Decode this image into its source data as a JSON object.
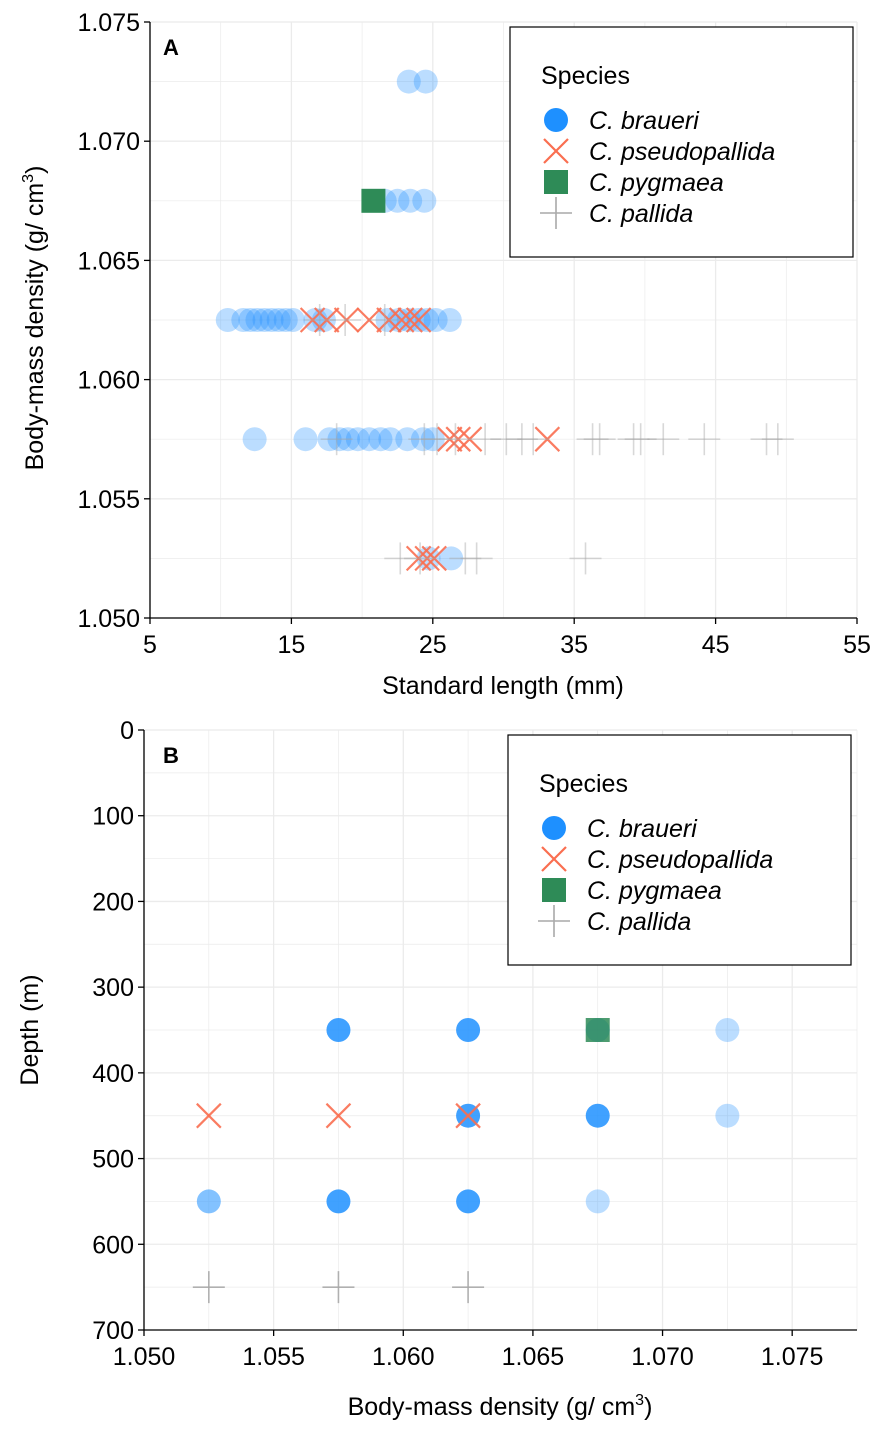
{
  "colors": {
    "braueri": "#1E90FF",
    "pseudopallida": "#FA6E50",
    "pygmaea": "#2E8B57",
    "pallida": "#A9A9A9",
    "grid": "#EBEBEB",
    "axis": "#000000"
  },
  "chart_data": [
    {
      "type": "scatter",
      "panel_label": "A",
      "title": "",
      "xlabel": "Standard length (mm)",
      "ylabel": "Body-mass density (g/ cm",
      "ylabel_sup": "3",
      "ylabel_tail": ")",
      "xlim": [
        5,
        55
      ],
      "ylim": [
        1.05,
        1.075
      ],
      "xticks": [
        5,
        15,
        25,
        35,
        45,
        55
      ],
      "xtick_labels": [
        "5",
        "15",
        "25",
        "35",
        "45",
        "55"
      ],
      "yticks": [
        1.05,
        1.055,
        1.06,
        1.065,
        1.07,
        1.075
      ],
      "ytick_labels": [
        "1.050",
        "1.055",
        "1.060",
        "1.065",
        "1.070",
        "1.075"
      ],
      "grid": true,
      "legend": {
        "position": "top-right",
        "title": "Species",
        "entries": [
          "C. braueri",
          "C. pseudopallida",
          "C. pygmaea",
          "C. pallida"
        ]
      },
      "series": [
        {
          "name": "C. braueri",
          "marker": "circle",
          "points": [
            [
              23.3,
              1.0725
            ],
            [
              24.5,
              1.0725
            ],
            [
              21.6,
              1.0675
            ],
            [
              22.5,
              1.0675
            ],
            [
              23.4,
              1.0675
            ],
            [
              24.4,
              1.0675
            ],
            [
              10.5,
              1.0625
            ],
            [
              11.6,
              1.0625
            ],
            [
              12.1,
              1.0625
            ],
            [
              12.6,
              1.0625
            ],
            [
              13.1,
              1.0625
            ],
            [
              13.6,
              1.0625
            ],
            [
              14.1,
              1.0625
            ],
            [
              14.6,
              1.0625
            ],
            [
              15.1,
              1.0625
            ],
            [
              16.7,
              1.0625
            ],
            [
              17.3,
              1.0625
            ],
            [
              21.8,
              1.0625
            ],
            [
              22.6,
              1.0625
            ],
            [
              23.3,
              1.0625
            ],
            [
              24.0,
              1.0625
            ],
            [
              24.6,
              1.0625
            ],
            [
              25.2,
              1.0625
            ],
            [
              26.2,
              1.0625
            ],
            [
              12.4,
              1.0575
            ],
            [
              16.0,
              1.0575
            ],
            [
              17.7,
              1.0575
            ],
            [
              18.4,
              1.0575
            ],
            [
              19.0,
              1.0575
            ],
            [
              19.7,
              1.0575
            ],
            [
              20.5,
              1.0575
            ],
            [
              21.3,
              1.0575
            ],
            [
              22.0,
              1.0575
            ],
            [
              23.2,
              1.0575
            ],
            [
              24.3,
              1.0575
            ],
            [
              25.0,
              1.0575
            ],
            [
              24.7,
              1.0525
            ],
            [
              26.3,
              1.0525
            ]
          ]
        },
        {
          "name": "C. pseudopallida",
          "marker": "x",
          "points": [
            [
              16.5,
              1.0625
            ],
            [
              17.5,
              1.0625
            ],
            [
              18.9,
              1.0625
            ],
            [
              20.5,
              1.0625
            ],
            [
              21.9,
              1.0625
            ],
            [
              22.8,
              1.0625
            ],
            [
              23.4,
              1.0625
            ],
            [
              24.0,
              1.0625
            ],
            [
              26.2,
              1.0575
            ],
            [
              26.8,
              1.0575
            ],
            [
              27.6,
              1.0575
            ],
            [
              33.1,
              1.0575
            ],
            [
              24.0,
              1.0525
            ],
            [
              24.6,
              1.0525
            ],
            [
              25.1,
              1.0525
            ]
          ]
        },
        {
          "name": "C. pygmaea",
          "marker": "square",
          "points": [
            [
              20.8,
              1.0675
            ]
          ]
        },
        {
          "name": "C. pallida",
          "marker": "plus",
          "points": [
            [
              17.0,
              1.0625
            ],
            [
              18.8,
              1.0625
            ],
            [
              21.6,
              1.0625
            ],
            [
              18.2,
              1.0575
            ],
            [
              24.4,
              1.0575
            ],
            [
              25.3,
              1.0575
            ],
            [
              26.6,
              1.0575
            ],
            [
              28.7,
              1.0575
            ],
            [
              30.2,
              1.0575
            ],
            [
              31.3,
              1.0575
            ],
            [
              32.1,
              1.0575
            ],
            [
              36.3,
              1.0575
            ],
            [
              36.8,
              1.0575
            ],
            [
              39.2,
              1.0575
            ],
            [
              39.7,
              1.0575
            ],
            [
              41.3,
              1.0575
            ],
            [
              44.2,
              1.0575
            ],
            [
              48.6,
              1.0575
            ],
            [
              49.4,
              1.0575
            ],
            [
              22.7,
              1.0525
            ],
            [
              24.1,
              1.0525
            ],
            [
              27.3,
              1.0525
            ],
            [
              28.1,
              1.0525
            ],
            [
              35.8,
              1.0525
            ]
          ]
        }
      ]
    },
    {
      "type": "scatter",
      "panel_label": "B",
      "title": "",
      "xlabel": "Body-mass density (g/ cm",
      "xlabel_sup": "3",
      "xlabel_tail": ")",
      "ylabel": "Depth (m)",
      "xlim": [
        1.05,
        1.0775
      ],
      "ylim": [
        0,
        700
      ],
      "y_inverted": true,
      "xticks": [
        1.05,
        1.055,
        1.06,
        1.065,
        1.07,
        1.075
      ],
      "xtick_labels": [
        "1.050",
        "1.055",
        "1.060",
        "1.065",
        "1.070",
        "1.075"
      ],
      "yticks": [
        0,
        100,
        200,
        300,
        400,
        500,
        600,
        700
      ],
      "ytick_labels": [
        "0",
        "100",
        "200",
        "300",
        "400",
        "500",
        "600",
        "700"
      ],
      "grid": true,
      "legend": {
        "position": "top-right",
        "title": "Species",
        "entries": [
          "C. braueri",
          "C. pseudopallida",
          "C. pygmaea",
          "C. pallida"
        ]
      },
      "series": [
        {
          "name": "C. braueri",
          "marker": "circle",
          "points": [
            [
              1.0575,
              350,
              3
            ],
            [
              1.0625,
              350,
              3
            ],
            [
              1.0675,
              350,
              2
            ],
            [
              1.0725,
              350,
              1
            ],
            [
              1.0625,
              450,
              3
            ],
            [
              1.0675,
              450,
              3
            ],
            [
              1.0725,
              450,
              1
            ],
            [
              1.0525,
              550,
              2
            ],
            [
              1.0575,
              550,
              3
            ],
            [
              1.0625,
              550,
              3
            ],
            [
              1.0675,
              550,
              1
            ]
          ]
        },
        {
          "name": "C. pseudopallida",
          "marker": "x",
          "points": [
            [
              1.0525,
              450
            ],
            [
              1.0575,
              450
            ],
            [
              1.0625,
              450
            ]
          ]
        },
        {
          "name": "C. pygmaea",
          "marker": "square",
          "points": [
            [
              1.0675,
              350
            ]
          ]
        },
        {
          "name": "C. pallida",
          "marker": "plus",
          "points": [
            [
              1.0525,
              650
            ],
            [
              1.0575,
              650
            ],
            [
              1.0625,
              650
            ]
          ]
        }
      ]
    }
  ]
}
